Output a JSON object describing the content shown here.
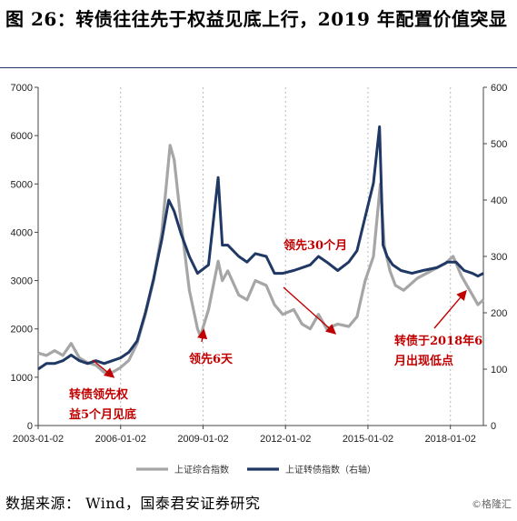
{
  "title": "图 26：转债往往先于权益见底上行，2019 年配置价值突显",
  "source": "数据来源： Wind，国泰君安证券研究",
  "watermark": "©格隆汇",
  "chart_data": {
    "type": "line",
    "x_ticks": [
      "2003-01-02",
      "2006-01-02",
      "2009-01-02",
      "2012-01-02",
      "2015-01-02",
      "2018-01-02"
    ],
    "y_left_ticks": [
      "0",
      "1000",
      "2000",
      "3000",
      "4000",
      "5000",
      "6000",
      "7000"
    ],
    "y_right_ticks": [
      "0",
      "100",
      "200",
      "300",
      "400",
      "500",
      "600"
    ],
    "ylim_left": [
      0,
      7000
    ],
    "ylim_right": [
      0,
      600
    ],
    "xlim": [
      2003.0,
      2019.2
    ],
    "series": [
      {
        "name": "上证综合指数",
        "axis": "left",
        "color": "#a6a6a6",
        "x": [
          2003.0,
          2003.3,
          2003.6,
          2003.9,
          2004.2,
          2004.5,
          2004.8,
          2005.1,
          2005.4,
          2005.7,
          2006.0,
          2006.3,
          2006.6,
          2006.9,
          2007.2,
          2007.5,
          2007.8,
          2007.95,
          2008.2,
          2008.5,
          2008.8,
          2008.9,
          2009.2,
          2009.55,
          2009.7,
          2009.9,
          2010.3,
          2010.6,
          2010.9,
          2011.3,
          2011.6,
          2011.9,
          2012.3,
          2012.6,
          2012.9,
          2013.2,
          2013.5,
          2013.9,
          2014.3,
          2014.6,
          2014.9,
          2015.2,
          2015.45,
          2015.6,
          2015.8,
          2016.0,
          2016.3,
          2016.8,
          2017.3,
          2017.8,
          2018.1,
          2018.4,
          2018.7,
          2019.0,
          2019.2
        ],
        "values": [
          1500,
          1450,
          1550,
          1450,
          1700,
          1400,
          1300,
          1250,
          1100,
          1100,
          1200,
          1350,
          1700,
          2300,
          3000,
          4000,
          5800,
          5500,
          4200,
          2800,
          2000,
          1850,
          2400,
          3400,
          3000,
          3200,
          2700,
          2600,
          3000,
          2900,
          2500,
          2300,
          2400,
          2100,
          2000,
          2300,
          2000,
          2100,
          2050,
          2250,
          3000,
          3500,
          5000,
          3700,
          3200,
          2900,
          2800,
          3050,
          3200,
          3350,
          3500,
          3100,
          2800,
          2500,
          2600
        ]
      },
      {
        "name": "上证转债指数（右轴）",
        "axis": "right",
        "color": "#1f3864",
        "x": [
          2003.0,
          2003.3,
          2003.6,
          2003.9,
          2004.2,
          2004.5,
          2004.8,
          2005.1,
          2005.4,
          2005.7,
          2006.0,
          2006.3,
          2006.6,
          2006.9,
          2007.2,
          2007.5,
          2007.75,
          2007.95,
          2008.2,
          2008.5,
          2008.8,
          2009.2,
          2009.55,
          2009.7,
          2009.9,
          2010.3,
          2010.6,
          2010.9,
          2011.3,
          2011.6,
          2011.9,
          2012.3,
          2012.6,
          2012.9,
          2013.2,
          2013.5,
          2013.9,
          2014.3,
          2014.6,
          2014.9,
          2015.2,
          2015.42,
          2015.55,
          2015.7,
          2015.9,
          2016.2,
          2016.6,
          2017.0,
          2017.5,
          2017.9,
          2018.2,
          2018.5,
          2018.8,
          2019.0,
          2019.2
        ],
        "values": [
          100,
          110,
          110,
          115,
          125,
          115,
          110,
          115,
          110,
          115,
          120,
          130,
          150,
          200,
          260,
          330,
          400,
          380,
          340,
          300,
          270,
          285,
          440,
          320,
          320,
          300,
          290,
          305,
          300,
          270,
          270,
          275,
          280,
          285,
          300,
          290,
          275,
          290,
          310,
          370,
          430,
          530,
          320,
          300,
          285,
          275,
          270,
          275,
          280,
          290,
          290,
          275,
          270,
          265,
          270
        ]
      }
    ],
    "annotations": [
      {
        "label": "转债领先权\n益5个月见底",
        "x": 2005.4,
        "y_left": 1050
      },
      {
        "label": "领先6天",
        "x": 2008.9,
        "y_left": 1800
      },
      {
        "label": "领先30个月",
        "x": 2012.0,
        "y_left": 2700
      },
      {
        "label": "转债于2018年6\n月出现低点",
        "x": 2018.5,
        "y_left": 2750
      }
    ],
    "legend": [
      "上证综合指数",
      "上证转债指数（右轴）"
    ],
    "legend_position": "bottom"
  }
}
